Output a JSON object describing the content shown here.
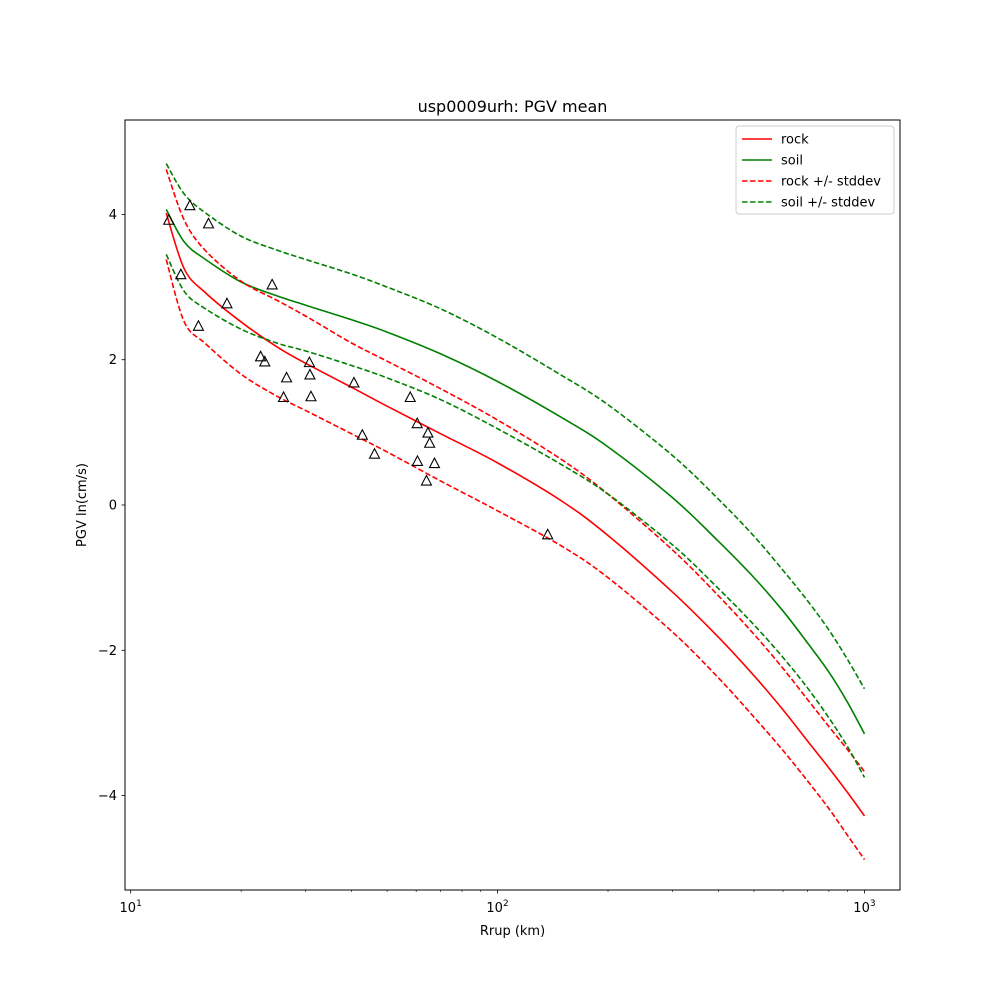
{
  "chart_data": {
    "type": "line",
    "title": "usp0009urh: PGV mean",
    "xlabel": "Rrup (km)",
    "ylabel": "PGV ln(cm/s)",
    "xscale": "log",
    "xlim": [
      9.65,
      1250
    ],
    "ylim": [
      -5.3,
      5.3
    ],
    "x_ticks": [
      {
        "value": 10,
        "base": "10",
        "exp": "1"
      },
      {
        "value": 100,
        "base": "10",
        "exp": "2"
      },
      {
        "value": 1000,
        "base": "10",
        "exp": "3"
      }
    ],
    "y_ticks": [
      {
        "value": -4,
        "label": "−4"
      },
      {
        "value": -2,
        "label": "−2"
      },
      {
        "value": 0,
        "label": "0"
      },
      {
        "value": 2,
        "label": "2"
      },
      {
        "value": 4,
        "label": "4"
      }
    ],
    "grid": false,
    "legend_position": "upper-right",
    "x": [
      12.5,
      14,
      16,
      20,
      25,
      30,
      40,
      50,
      70,
      100,
      150,
      200,
      300,
      400,
      500,
      600,
      700,
      800,
      900,
      1000
    ],
    "series": [
      {
        "name": "rock",
        "color": "#ff0000",
        "style": "solid",
        "values": [
          4.02,
          3.25,
          2.92,
          2.52,
          2.18,
          1.95,
          1.62,
          1.36,
          0.98,
          0.58,
          0.05,
          -0.42,
          -1.2,
          -1.82,
          -2.35,
          -2.82,
          -3.25,
          -3.62,
          -3.96,
          -4.28
        ]
      },
      {
        "name": "soil",
        "color": "#008000",
        "style": "solid",
        "values": [
          4.07,
          3.62,
          3.38,
          3.07,
          2.88,
          2.75,
          2.55,
          2.38,
          2.08,
          1.7,
          1.2,
          0.8,
          0.1,
          -0.5,
          -1.0,
          -1.46,
          -1.9,
          -2.3,
          -2.72,
          -3.15
        ]
      },
      {
        "name": "rock +/- stddev",
        "color": "#ff0000",
        "style": "dashed",
        "values": [
          4.62,
          3.92,
          3.5,
          3.08,
          2.82,
          2.6,
          2.23,
          1.98,
          1.6,
          1.17,
          0.62,
          0.15,
          -0.62,
          -1.25,
          -1.78,
          -2.25,
          -2.68,
          -3.05,
          -3.37,
          -3.67
        ]
      },
      {
        "name": "rock +/- stddev",
        "color": "#ff0000",
        "style": "dashed",
        "values": [
          3.38,
          2.52,
          2.22,
          1.8,
          1.5,
          1.3,
          0.98,
          0.73,
          0.33,
          -0.08,
          -0.57,
          -1.0,
          -1.75,
          -2.38,
          -2.92,
          -3.38,
          -3.8,
          -4.18,
          -4.55,
          -4.88
        ]
      },
      {
        "name": "soil +/- stddev",
        "color": "#008000",
        "style": "dashed",
        "values": [
          4.7,
          4.28,
          4.02,
          3.7,
          3.51,
          3.38,
          3.18,
          3.0,
          2.7,
          2.3,
          1.78,
          1.38,
          0.68,
          0.08,
          -0.43,
          -0.9,
          -1.32,
          -1.72,
          -2.13,
          -2.53
        ]
      },
      {
        "name": "soil +/- stddev",
        "color": "#008000",
        "style": "dashed",
        "values": [
          3.45,
          2.94,
          2.7,
          2.42,
          2.23,
          2.12,
          1.92,
          1.75,
          1.45,
          1.05,
          0.55,
          0.15,
          -0.55,
          -1.15,
          -1.65,
          -2.1,
          -2.52,
          -2.93,
          -3.33,
          -3.75
        ]
      }
    ],
    "observations": {
      "marker": "triangle",
      "x": [
        12.7,
        14.5,
        13.7,
        16.3,
        15.3,
        18.3,
        24.3,
        22.6,
        23.2,
        26.1,
        26.6,
        30.7,
        30.8,
        31.0,
        40.6,
        42.8,
        46.2,
        57.8,
        60.4,
        60.5,
        64.6,
        65.3,
        64.0,
        67.3,
        137.0
      ],
      "y": [
        3.92,
        4.12,
        3.17,
        3.87,
        2.46,
        2.77,
        3.03,
        2.04,
        1.97,
        1.48,
        1.75,
        1.96,
        1.79,
        1.49,
        1.68,
        0.96,
        0.7,
        1.48,
        1.12,
        0.6,
        0.99,
        0.85,
        0.33,
        0.57,
        -0.41
      ]
    }
  }
}
